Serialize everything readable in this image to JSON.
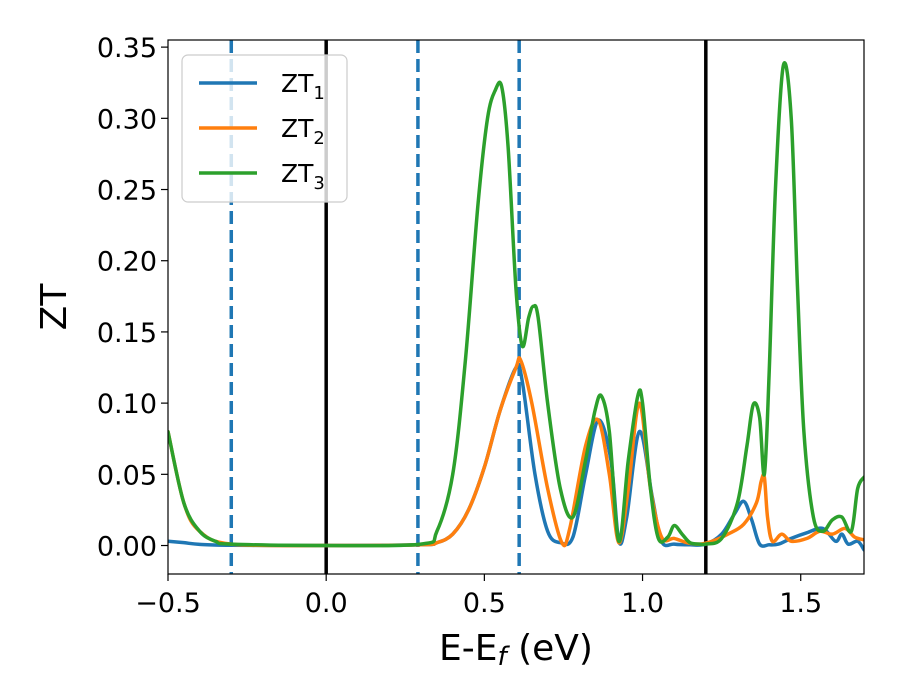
{
  "chart_data": {
    "type": "line",
    "xlabel_main": "E-E",
    "xlabel_sub": "f",
    "xlabel_unit": " (eV)",
    "ylabel": "ZT",
    "xlim": [
      -0.5,
      1.7
    ],
    "ylim": [
      -0.02,
      0.355
    ],
    "xticks": [
      -0.5,
      0.0,
      0.5,
      1.0,
      1.5
    ],
    "xtick_labels": [
      "−0.5",
      "0.0",
      "0.5",
      "1.0",
      "1.5"
    ],
    "yticks": [
      0.0,
      0.05,
      0.1,
      0.15,
      0.2,
      0.25,
      0.3,
      0.35
    ],
    "ytick_labels": [
      "0.00",
      "0.05",
      "0.10",
      "0.15",
      "0.20",
      "0.25",
      "0.30",
      "0.35"
    ],
    "grid": false,
    "legend_position": "top-left",
    "vlines": [
      {
        "x": -0.3,
        "style": "dashed",
        "color": "#1f77b4"
      },
      {
        "x": 0.0,
        "style": "solid",
        "color": "#000000"
      },
      {
        "x": 0.29,
        "style": "dashed",
        "color": "#1f77b4"
      },
      {
        "x": 0.61,
        "style": "dashed",
        "color": "#1f77b4"
      },
      {
        "x": 1.2,
        "style": "solid",
        "color": "#000000"
      }
    ],
    "series": [
      {
        "name_main": "ZT",
        "name_sub": "1",
        "color": "#1f77b4",
        "x": [
          -0.5,
          -0.45,
          -0.4,
          -0.3,
          0.0,
          0.3,
          0.35,
          0.4,
          0.45,
          0.5,
          0.55,
          0.6,
          0.62,
          0.66,
          0.7,
          0.74,
          0.78,
          0.82,
          0.86,
          0.9,
          0.925,
          0.95,
          0.99,
          1.03,
          1.06,
          1.1,
          1.15,
          1.2,
          1.25,
          1.29,
          1.32,
          1.345,
          1.37,
          1.4,
          1.43,
          1.47,
          1.52,
          1.57,
          1.61,
          1.63,
          1.65,
          1.68,
          1.7
        ],
        "y": [
          0.003,
          0.002,
          0.0008,
          0.0002,
          0.0,
          0.0005,
          0.002,
          0.008,
          0.025,
          0.055,
          0.095,
          0.125,
          0.115,
          0.05,
          0.01,
          0.002,
          0.006,
          0.05,
          0.088,
          0.06,
          0.003,
          0.02,
          0.08,
          0.035,
          0.003,
          0.001,
          0.0005,
          0.001,
          0.008,
          0.022,
          0.031,
          0.018,
          0.001,
          0.0005,
          0.001,
          0.005,
          0.009,
          0.012,
          0.003,
          0.008,
          0.001,
          0.003,
          -0.003
        ]
      },
      {
        "name_main": "ZT",
        "name_sub": "2",
        "color": "#ff7f0e",
        "x": [
          -0.5,
          -0.45,
          -0.4,
          -0.3,
          0.0,
          0.3,
          0.35,
          0.4,
          0.45,
          0.5,
          0.55,
          0.6,
          0.615,
          0.65,
          0.7,
          0.745,
          0.77,
          0.82,
          0.86,
          0.895,
          0.925,
          0.955,
          0.99,
          1.025,
          1.06,
          1.1,
          1.14,
          1.18,
          1.22,
          1.27,
          1.32,
          1.36,
          1.375,
          1.385,
          1.395,
          1.41,
          1.44,
          1.47,
          1.52,
          1.56,
          1.6,
          1.64,
          1.67,
          1.7
        ],
        "y": [
          0.08,
          0.03,
          0.01,
          0.001,
          0.0,
          0.0005,
          0.002,
          0.008,
          0.025,
          0.055,
          0.095,
          0.125,
          0.13,
          0.1,
          0.04,
          0.002,
          0.012,
          0.07,
          0.088,
          0.05,
          0.002,
          0.04,
          0.1,
          0.04,
          0.006,
          0.005,
          0.002,
          0.001,
          0.003,
          0.008,
          0.015,
          0.03,
          0.045,
          0.048,
          0.02,
          0.003,
          0.008,
          0.003,
          0.005,
          0.01,
          0.008,
          0.012,
          0.006,
          0.004
        ]
      },
      {
        "name_main": "ZT",
        "name_sub": "3",
        "color": "#2ca02c",
        "x": [
          -0.5,
          -0.45,
          -0.4,
          -0.35,
          -0.3,
          0.0,
          0.3,
          0.35,
          0.4,
          0.44,
          0.48,
          0.51,
          0.535,
          0.555,
          0.575,
          0.6,
          0.62,
          0.64,
          0.655,
          0.67,
          0.7,
          0.74,
          0.78,
          0.82,
          0.85,
          0.87,
          0.895,
          0.925,
          0.955,
          0.985,
          1.0,
          1.025,
          1.05,
          1.08,
          1.1,
          1.125,
          1.15,
          1.18,
          1.2,
          1.25,
          1.3,
          1.33,
          1.35,
          1.37,
          1.385,
          1.4,
          1.42,
          1.445,
          1.47,
          1.49,
          1.51,
          1.54,
          1.57,
          1.6,
          1.63,
          1.66,
          1.68,
          1.7
        ],
        "y": [
          0.08,
          0.03,
          0.01,
          0.003,
          0.001,
          0.0,
          0.001,
          0.01,
          0.05,
          0.13,
          0.24,
          0.3,
          0.32,
          0.322,
          0.28,
          0.18,
          0.14,
          0.16,
          0.168,
          0.16,
          0.1,
          0.04,
          0.02,
          0.06,
          0.095,
          0.105,
          0.08,
          0.003,
          0.06,
          0.105,
          0.1,
          0.04,
          0.005,
          0.006,
          0.014,
          0.008,
          0.002,
          0.001,
          0.001,
          0.005,
          0.03,
          0.07,
          0.099,
          0.09,
          0.05,
          0.12,
          0.25,
          0.337,
          0.3,
          0.18,
          0.08,
          0.02,
          0.01,
          0.018,
          0.02,
          0.01,
          0.04,
          0.048
        ]
      }
    ]
  }
}
